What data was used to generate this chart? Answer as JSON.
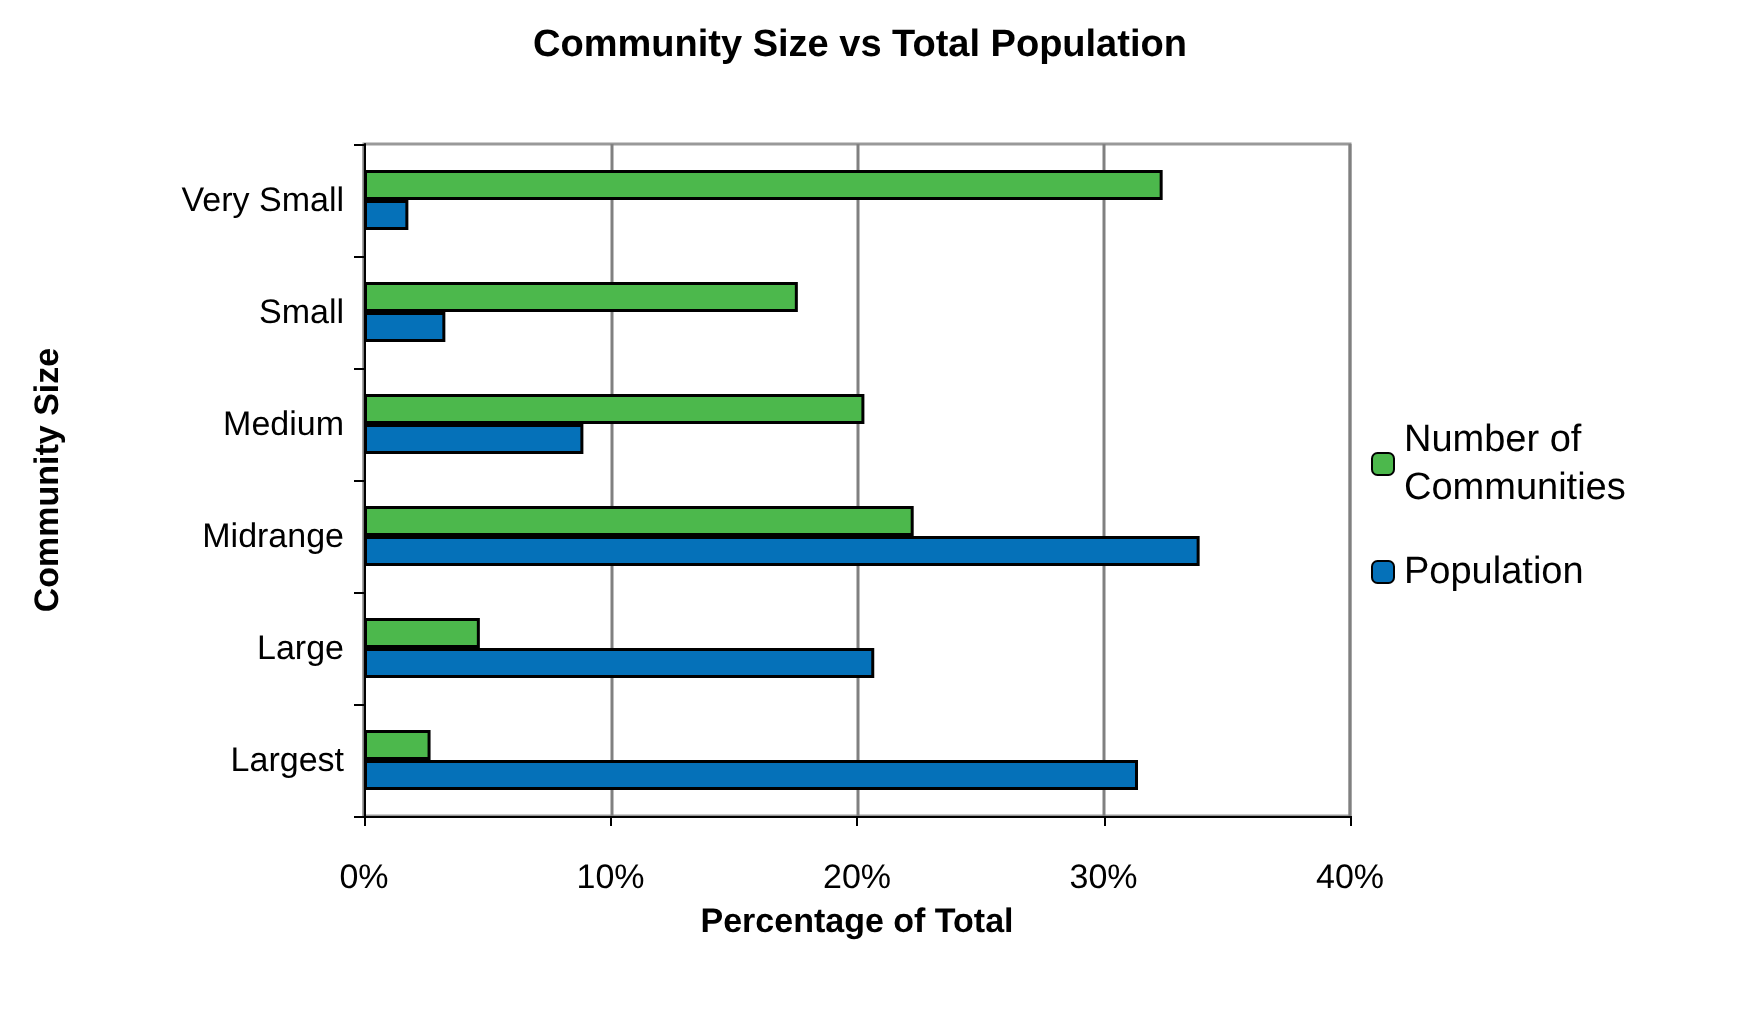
{
  "chart_data": {
    "type": "bar",
    "orientation": "horizontal",
    "title": "Community Size vs Total Population",
    "xlabel": "Percentage of Total",
    "ylabel": "Community Size",
    "categories": [
      "Very Small",
      "Small",
      "Medium",
      "Midrange",
      "Large",
      "Largest"
    ],
    "series": [
      {
        "name": "Number of Communities",
        "color": "#4cb84c",
        "values": [
          32.4,
          17.6,
          20.3,
          22.3,
          4.7,
          2.7
        ]
      },
      {
        "name": "Population",
        "color": "#0571b9",
        "values": [
          1.8,
          3.3,
          8.9,
          33.9,
          20.7,
          31.4
        ]
      }
    ],
    "xlim": [
      0,
      40
    ],
    "xticks": [
      {
        "value": 0,
        "label": "0%"
      },
      {
        "value": 10,
        "label": "10%"
      },
      {
        "value": 20,
        "label": "20%"
      },
      {
        "value": 30,
        "label": "30%"
      },
      {
        "value": 40,
        "label": "40%"
      }
    ],
    "grid": "x",
    "legend": "right"
  }
}
